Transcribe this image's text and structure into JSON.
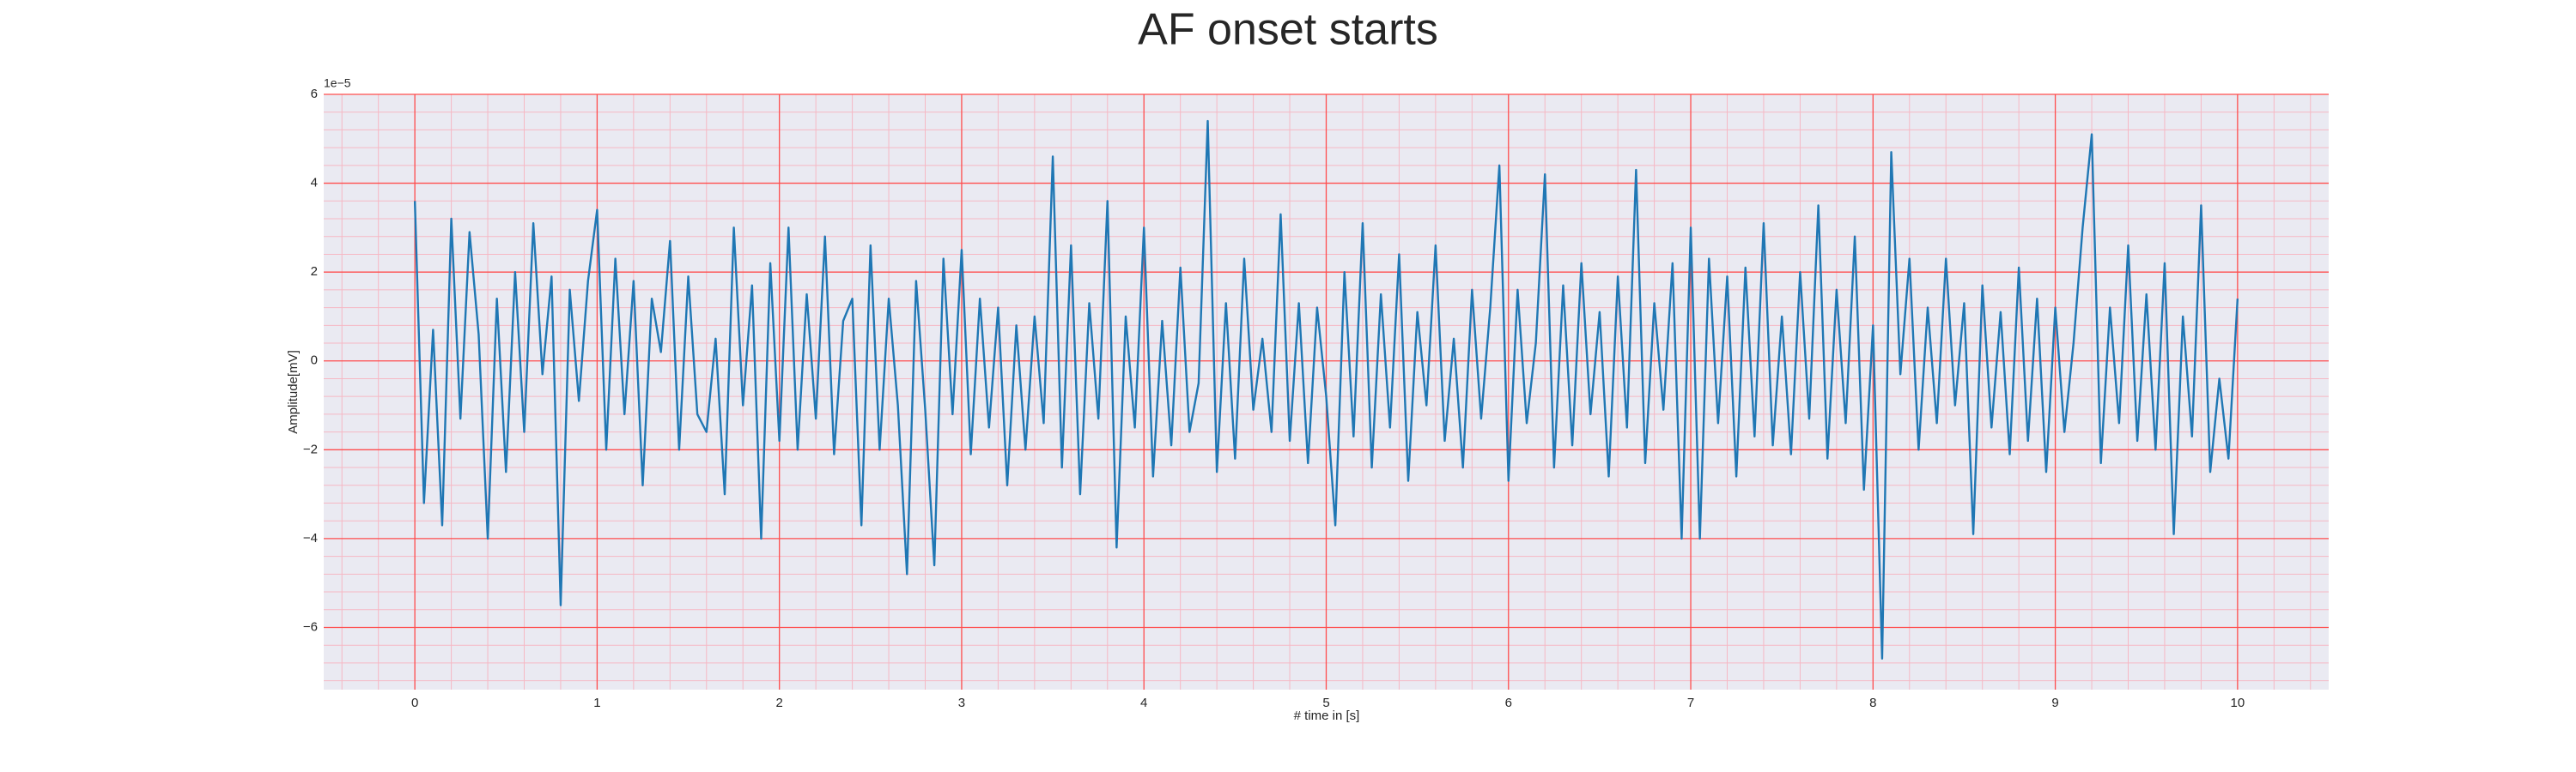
{
  "chart_data": {
    "type": "line",
    "title": "AF onset starts",
    "xlabel": "# time in [s]",
    "ylabel": "Amplitude[mV]",
    "y_offset_label": "1e−5",
    "color": "#1f77b4",
    "x": [
      0,
      0.05,
      0.1,
      0.15,
      0.2,
      0.25,
      0.3,
      0.35,
      0.4,
      0.45,
      0.5,
      0.55,
      0.6,
      0.65,
      0.7,
      0.75,
      0.8,
      0.85,
      0.9,
      0.95,
      1,
      1.05,
      1.1,
      1.15,
      1.2,
      1.25,
      1.3,
      1.35,
      1.4,
      1.45,
      1.5,
      1.55,
      1.6,
      1.65,
      1.7,
      1.75,
      1.8,
      1.85,
      1.9,
      1.95,
      2,
      2.05,
      2.1,
      2.15,
      2.2,
      2.25,
      2.3,
      2.35,
      2.4,
      2.45,
      2.5,
      2.55,
      2.6,
      2.65,
      2.7,
      2.75,
      2.8,
      2.85,
      2.9,
      2.95,
      3,
      3.05,
      3.1,
      3.15,
      3.2,
      3.25,
      3.3,
      3.35,
      3.4,
      3.45,
      3.5,
      3.55,
      3.6,
      3.65,
      3.7,
      3.75,
      3.8,
      3.85,
      3.9,
      3.95,
      4,
      4.05,
      4.1,
      4.15,
      4.2,
      4.25,
      4.3,
      4.35,
      4.4,
      4.45,
      4.5,
      4.55,
      4.6,
      4.65,
      4.7,
      4.75,
      4.8,
      4.85,
      4.9,
      4.95,
      5,
      5.05,
      5.1,
      5.15,
      5.2,
      5.25,
      5.3,
      5.35,
      5.4,
      5.45,
      5.5,
      5.55,
      5.6,
      5.65,
      5.7,
      5.75,
      5.8,
      5.85,
      5.9,
      5.95,
      6,
      6.05,
      6.1,
      6.15,
      6.2,
      6.25,
      6.3,
      6.35,
      6.4,
      6.45,
      6.5,
      6.55,
      6.6,
      6.65,
      6.7,
      6.75,
      6.8,
      6.85,
      6.9,
      6.95,
      7,
      7.05,
      7.1,
      7.15,
      7.2,
      7.25,
      7.3,
      7.35,
      7.4,
      7.45,
      7.5,
      7.55,
      7.6,
      7.65,
      7.7,
      7.75,
      7.8,
      7.85,
      7.9,
      7.95,
      8,
      8.05,
      8.1,
      8.15,
      8.2,
      8.25,
      8.3,
      8.35,
      8.4,
      8.45,
      8.5,
      8.55,
      8.6,
      8.65,
      8.7,
      8.75,
      8.8,
      8.85,
      8.9,
      8.95,
      9,
      9.05,
      9.1,
      9.15,
      9.2,
      9.25,
      9.3,
      9.35,
      9.4,
      9.45,
      9.5,
      9.55,
      9.6,
      9.65,
      9.7,
      9.75,
      9.8,
      9.85,
      9.9,
      9.95,
      10
    ],
    "values": [
      3.6,
      -3.2,
      0.7,
      -3.7,
      3.2,
      -1.3,
      2.9,
      0.6,
      -4.0,
      1.4,
      -2.5,
      2.0,
      -1.6,
      3.1,
      -0.3,
      1.9,
      -5.5,
      1.6,
      -0.9,
      1.8,
      3.4,
      -2.0,
      2.3,
      -1.2,
      1.8,
      -2.8,
      1.4,
      0.2,
      2.7,
      -2.0,
      1.9,
      -1.2,
      -1.6,
      0.5,
      -3.0,
      3.0,
      -1.0,
      1.7,
      -4.0,
      2.2,
      -1.8,
      3.0,
      -2.0,
      1.5,
      -1.3,
      2.8,
      -2.1,
      0.9,
      1.4,
      -3.7,
      2.6,
      -2.0,
      1.4,
      -1.0,
      -4.8,
      1.8,
      -1.1,
      -4.6,
      2.3,
      -1.2,
      2.5,
      -2.1,
      1.4,
      -1.5,
      1.2,
      -2.8,
      0.8,
      -2.0,
      1.0,
      -1.4,
      4.6,
      -2.4,
      2.6,
      -3.0,
      1.3,
      -1.3,
      3.6,
      -4.2,
      1.0,
      -1.5,
      3.0,
      -2.6,
      0.9,
      -1.9,
      2.1,
      -1.6,
      -0.5,
      5.4,
      -2.5,
      1.3,
      -2.2,
      2.3,
      -1.1,
      0.5,
      -1.6,
      3.3,
      -1.8,
      1.3,
      -2.3,
      1.2,
      -0.8,
      -3.7,
      2.0,
      -1.7,
      3.1,
      -2.4,
      1.5,
      -1.5,
      2.4,
      -2.7,
      1.1,
      -1.0,
      2.6,
      -1.8,
      0.5,
      -2.4,
      1.6,
      -1.3,
      1.2,
      4.4,
      -2.7,
      1.6,
      -1.4,
      0.4,
      4.2,
      -2.4,
      1.7,
      -1.9,
      2.2,
      -1.2,
      1.1,
      -2.6,
      1.9,
      -1.5,
      4.3,
      -2.3,
      1.3,
      -1.1,
      2.2,
      -4.0,
      3.0,
      -4.0,
      2.3,
      -1.4,
      1.9,
      -2.6,
      2.1,
      -1.7,
      3.1,
      -1.9,
      1.0,
      -2.1,
      2.0,
      -1.3,
      3.5,
      -2.2,
      1.6,
      -1.4,
      2.8,
      -2.9,
      0.8,
      -6.7,
      4.7,
      -0.3,
      2.3,
      -2.0,
      1.2,
      -1.4,
      2.3,
      -1.0,
      1.3,
      -3.9,
      1.7,
      -1.5,
      1.1,
      -2.1,
      2.1,
      -1.8,
      1.4,
      -2.5,
      1.2,
      -1.6,
      0.4,
      3.0,
      5.1,
      -2.3,
      1.2,
      -1.4,
      2.6,
      -1.8,
      1.5,
      -2.0,
      2.2,
      -3.9,
      1.0,
      -1.7,
      3.5,
      -2.5,
      -0.4,
      -2.2,
      1.4
    ],
    "xlim": [
      -0.5,
      10.5
    ],
    "ylim": [
      -7.4,
      6
    ],
    "xticks": [
      0,
      1,
      2,
      3,
      4,
      5,
      6,
      7,
      8,
      9,
      10
    ],
    "yticks": [
      {
        "value": -6,
        "label": "−6"
      },
      {
        "value": -4,
        "label": "−4"
      },
      {
        "value": -2,
        "label": "−2"
      },
      0,
      2,
      4,
      6
    ],
    "xminorticks": [
      -0.4,
      -0.2,
      0.2,
      0.4,
      0.6,
      0.8,
      1.2,
      1.4,
      1.6,
      1.8,
      2.2,
      2.4,
      2.6,
      2.8,
      3.2,
      3.4,
      3.6,
      3.8,
      4.2,
      4.4,
      4.6,
      4.8,
      5.2,
      5.4,
      5.6,
      5.8,
      6.2,
      6.4,
      6.6,
      6.8,
      7.2,
      7.4,
      7.6,
      7.8,
      8.2,
      8.4,
      8.6,
      8.8,
      9.2,
      9.4,
      9.6,
      9.8,
      10.2,
      10.4
    ],
    "yminorticks": [
      -7.2,
      -6.8,
      -6.4,
      -5.6,
      -5.2,
      -4.8,
      -4.4,
      -3.6,
      -3.2,
      -2.8,
      -2.4,
      -1.6,
      -1.2,
      -0.8,
      -0.4,
      0.4,
      0.8,
      1.2,
      1.6,
      2.4,
      2.8,
      3.2,
      3.6,
      4.4,
      4.8,
      5.2,
      5.6
    ],
    "grid": true,
    "grid_color": "#ff4d4d",
    "minor_grid_color": "#f6b8c4",
    "background": "#eaeaf2"
  }
}
